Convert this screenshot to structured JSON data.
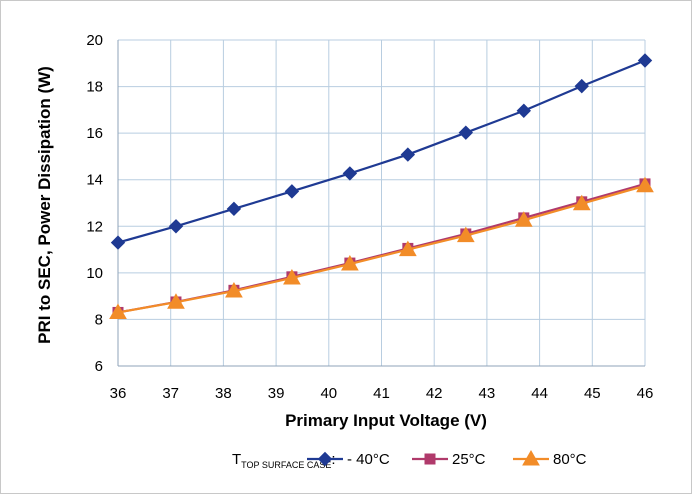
{
  "chart_data": {
    "type": "line",
    "xlabel": "Primary Input Voltage (V)",
    "ylabel": "PRI to SEC, Power Dissipation (W)",
    "xlim": [
      36,
      46
    ],
    "ylim": [
      6,
      20
    ],
    "x_ticks": [
      "36",
      "37",
      "38",
      "39",
      "40",
      "41",
      "42",
      "43",
      "44",
      "45",
      "46"
    ],
    "y_ticks": [
      "6",
      "8",
      "10",
      "12",
      "14",
      "16",
      "18",
      "20"
    ],
    "grid": true,
    "legend_position": "bottom",
    "legend_prefix": {
      "main": "T",
      "sub": "TOP SURFACE CASE",
      "suffix": ":"
    },
    "x": [
      36.0,
      37.1,
      38.2,
      39.3,
      40.4,
      41.5,
      42.6,
      43.7,
      44.8,
      46.0
    ],
    "series": [
      {
        "name": "- 40°C",
        "color": "#1f3a93",
        "marker": "diamond",
        "values": [
          11.3,
          12.0,
          12.75,
          13.5,
          14.27,
          15.08,
          16.02,
          16.96,
          18.02,
          19.12
        ]
      },
      {
        "name": "25°C",
        "color": "#b03a6b",
        "marker": "square",
        "values": [
          8.3,
          8.75,
          9.25,
          9.83,
          10.42,
          11.05,
          11.67,
          12.36,
          13.05,
          13.82
        ]
      },
      {
        "name": "80°C",
        "color": "#f28c28",
        "marker": "triangle",
        "values": [
          8.3,
          8.74,
          9.22,
          9.78,
          10.38,
          11.0,
          11.6,
          12.26,
          12.97,
          13.74
        ]
      }
    ]
  }
}
